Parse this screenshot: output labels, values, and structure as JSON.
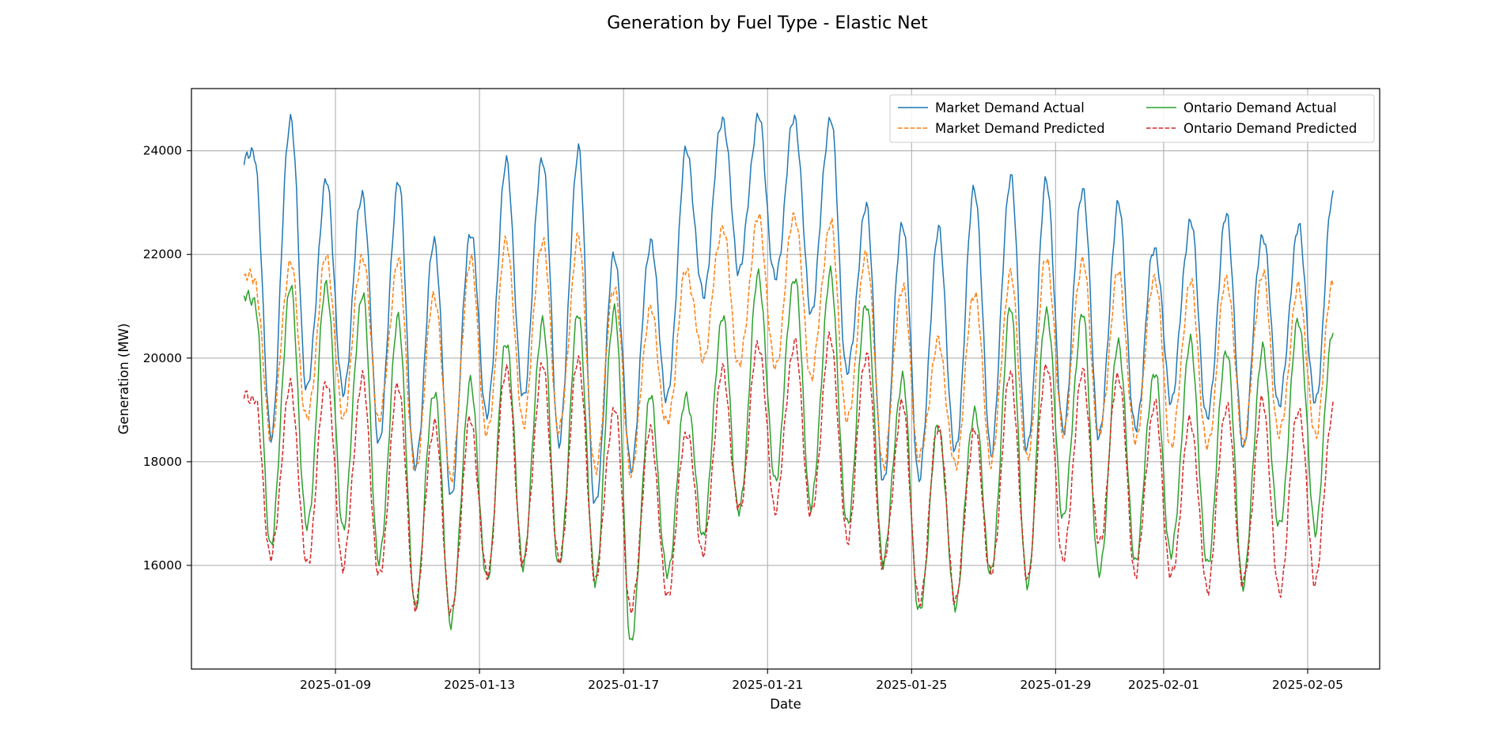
{
  "chart_data": {
    "type": "line",
    "title": "Generation by Fuel Type - Elastic Net",
    "xlabel": "Date",
    "ylabel": "Generation (MW)",
    "x_range": [
      "2025-01-05",
      "2025-02-07"
    ],
    "x_ticks": [
      "2025-01-09",
      "2025-01-13",
      "2025-01-17",
      "2025-01-21",
      "2025-01-25",
      "2025-01-29",
      "2025-02-01",
      "2025-02-05"
    ],
    "ylim": [
      14000,
      25200
    ],
    "y_ticks": [
      "16000",
      "18000",
      "20000",
      "22000",
      "24000"
    ],
    "grid": true,
    "legend_position": "top-right",
    "sampling": "hourly estimated, daily peak/trough values listed per series",
    "days": [
      "2025-01-06",
      "2025-01-07",
      "2025-01-08",
      "2025-01-09",
      "2025-01-10",
      "2025-01-11",
      "2025-01-12",
      "2025-01-13",
      "2025-01-14",
      "2025-01-15",
      "2025-01-16",
      "2025-01-17",
      "2025-01-18",
      "2025-01-19",
      "2025-01-20",
      "2025-01-21",
      "2025-01-22",
      "2025-01-23",
      "2025-01-24",
      "2025-01-25",
      "2025-01-26",
      "2025-01-27",
      "2025-01-28",
      "2025-01-29",
      "2025-01-30",
      "2025-01-31",
      "2025-02-01",
      "2025-02-02",
      "2025-02-03",
      "2025-02-04",
      "2025-02-05"
    ],
    "series": [
      {
        "name": "Market Demand Actual",
        "color": "#1f77b4",
        "dash": "solid",
        "start": "2025-01-06 11:00",
        "end": "2025-02-05 17:00",
        "start_value": 23900,
        "end_value": 23150,
        "daily_peak": [
          23900,
          24650,
          23400,
          23200,
          23400,
          22250,
          22450,
          23750,
          23900,
          24000,
          22000,
          22250,
          24000,
          24650,
          24650,
          24650,
          24650,
          22900,
          22650,
          22450,
          23300,
          23500,
          23400,
          23300,
          22950,
          22150,
          22650,
          22750,
          22400,
          22500,
          23150
        ],
        "daily_trough": [
          19200,
          18500,
          19400,
          19300,
          18400,
          17850,
          17350,
          18900,
          19200,
          18400,
          17100,
          17900,
          19200,
          21200,
          21700,
          21500,
          20900,
          19700,
          17600,
          17700,
          18150,
          18200,
          18200,
          18600,
          18500,
          18600,
          19200,
          18800,
          18300,
          19100,
          19100
        ]
      },
      {
        "name": "Market Demand Predicted",
        "color": "#ff7f0e",
        "dash": "dashed",
        "start": "2025-01-06 11:00",
        "end": "2025-02-05 17:00",
        "start_value": 21550,
        "end_value": 21500,
        "daily_peak": [
          21550,
          21850,
          21950,
          22000,
          21850,
          21250,
          21900,
          22250,
          22300,
          22300,
          21400,
          20950,
          21700,
          22550,
          22700,
          22800,
          22600,
          22000,
          21400,
          20300,
          21300,
          21600,
          21950,
          21900,
          21650,
          21600,
          21450,
          21550,
          21650,
          21350,
          21500
        ],
        "daily_trough": [
          19150,
          18500,
          18800,
          18850,
          18800,
          17800,
          17700,
          18500,
          18750,
          18600,
          17800,
          17800,
          18700,
          20000,
          19850,
          19800,
          19650,
          18750,
          17950,
          18050,
          17900,
          18000,
          18000,
          18600,
          18500,
          18400,
          18300,
          18250,
          18400,
          18500,
          18500
        ]
      },
      {
        "name": "Ontario Demand Actual",
        "color": "#2ca02c",
        "dash": "solid",
        "start": "2025-01-06 11:00",
        "end": "2025-02-05 17:00",
        "start_value": 21150,
        "end_value": 20600,
        "daily_peak": [
          21150,
          21350,
          21450,
          21250,
          20750,
          19400,
          19500,
          20350,
          20700,
          20850,
          21000,
          19250,
          19300,
          20800,
          21600,
          21600,
          21600,
          21100,
          19600,
          18700,
          19000,
          20950,
          20950,
          20850,
          20300,
          19750,
          20300,
          20200,
          20150,
          20750,
          20600
        ],
        "daily_trough": [
          16050,
          16400,
          16700,
          16750,
          16050,
          15200,
          14900,
          15700,
          16050,
          15950,
          15700,
          14500,
          15800,
          16600,
          17000,
          17650,
          17150,
          16750,
          16100,
          15050,
          15250,
          15850,
          15600,
          16950,
          15800,
          16100,
          16200,
          16000,
          15650,
          16700,
          16700
        ]
      },
      {
        "name": "Ontario Demand Predicted",
        "color": "#d62728",
        "dash": "dashed",
        "start": "2025-01-06 11:00",
        "end": "2025-02-05 17:00",
        "start_value": 19250,
        "end_value": 19050,
        "daily_peak": [
          19250,
          19450,
          19600,
          19600,
          19500,
          18750,
          18800,
          19850,
          19850,
          20000,
          19050,
          18600,
          18600,
          19750,
          20300,
          20300,
          20400,
          20100,
          19100,
          18700,
          18600,
          19700,
          19900,
          19700,
          19700,
          19100,
          18800,
          19100,
          19150,
          19050,
          19050
        ],
        "daily_trough": [
          16200,
          16150,
          16000,
          16000,
          15750,
          15250,
          15050,
          15800,
          16050,
          16050,
          15750,
          15100,
          15400,
          16250,
          17050,
          17100,
          16950,
          16500,
          16000,
          15250,
          15350,
          15800,
          15750,
          16100,
          16400,
          15850,
          15750,
          15550,
          15650,
          15450,
          15700
        ]
      }
    ]
  }
}
